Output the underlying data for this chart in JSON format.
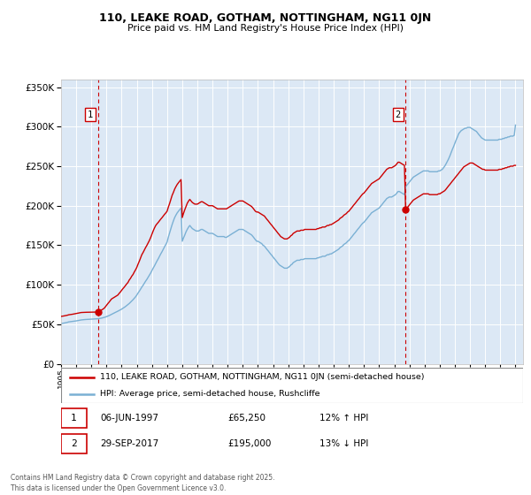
{
  "title1": "110, LEAKE ROAD, GOTHAM, NOTTINGHAM, NG11 0JN",
  "title2": "Price paid vs. HM Land Registry's House Price Index (HPI)",
  "legend1": "110, LEAKE ROAD, GOTHAM, NOTTINGHAM, NG11 0JN (semi-detached house)",
  "legend2": "HPI: Average price, semi-detached house, Rushcliffe",
  "annotation1_label": "1",
  "annotation1_date": "06-JUN-1997",
  "annotation1_price": "£65,250",
  "annotation1_hpi": "12% ↑ HPI",
  "annotation1_year": 1997.44,
  "annotation1_value": 65250,
  "annotation2_label": "2",
  "annotation2_date": "29-SEP-2017",
  "annotation2_price": "£195,000",
  "annotation2_hpi": "13% ↓ HPI",
  "annotation2_year": 2017.75,
  "annotation2_value": 195000,
  "red_color": "#cc0000",
  "blue_color": "#7ab0d4",
  "background_color": "#dce8f5",
  "grid_color": "#ffffff",
  "ylim": [
    0,
    360000
  ],
  "xlim_start": 1995.0,
  "xlim_end": 2025.5,
  "footer": "Contains HM Land Registry data © Crown copyright and database right 2025.\nThis data is licensed under the Open Government Licence v3.0.",
  "red_x": [
    1995.0,
    1995.08,
    1995.17,
    1995.25,
    1995.33,
    1995.42,
    1995.5,
    1995.58,
    1995.67,
    1995.75,
    1995.83,
    1995.92,
    1996.0,
    1996.08,
    1996.17,
    1996.25,
    1996.33,
    1996.42,
    1996.5,
    1996.58,
    1996.67,
    1996.75,
    1996.83,
    1996.92,
    1997.0,
    1997.08,
    1997.17,
    1997.25,
    1997.33,
    1997.42,
    1997.5,
    1997.58,
    1997.67,
    1997.75,
    1997.83,
    1997.92,
    1998.0,
    1998.08,
    1998.17,
    1998.25,
    1998.33,
    1998.42,
    1998.5,
    1998.58,
    1998.67,
    1998.75,
    1998.83,
    1998.92,
    1999.0,
    1999.08,
    1999.17,
    1999.25,
    1999.33,
    1999.42,
    1999.5,
    1999.58,
    1999.67,
    1999.75,
    1999.83,
    1999.92,
    2000.0,
    2000.08,
    2000.17,
    2000.25,
    2000.33,
    2000.42,
    2000.5,
    2000.58,
    2000.67,
    2000.75,
    2000.83,
    2000.92,
    2001.0,
    2001.08,
    2001.17,
    2001.25,
    2001.33,
    2001.42,
    2001.5,
    2001.58,
    2001.67,
    2001.75,
    2001.83,
    2001.92,
    2002.0,
    2002.08,
    2002.17,
    2002.25,
    2002.33,
    2002.42,
    2002.5,
    2002.58,
    2002.67,
    2002.75,
    2002.83,
    2002.92,
    2003.0,
    2003.08,
    2003.17,
    2003.25,
    2003.33,
    2003.42,
    2003.5,
    2003.58,
    2003.67,
    2003.75,
    2003.83,
    2003.92,
    2004.0,
    2004.08,
    2004.17,
    2004.25,
    2004.33,
    2004.42,
    2004.5,
    2004.58,
    2004.67,
    2004.75,
    2004.83,
    2004.92,
    2005.0,
    2005.08,
    2005.17,
    2005.25,
    2005.33,
    2005.42,
    2005.5,
    2005.58,
    2005.67,
    2005.75,
    2005.83,
    2005.92,
    2006.0,
    2006.08,
    2006.17,
    2006.25,
    2006.33,
    2006.42,
    2006.5,
    2006.58,
    2006.67,
    2006.75,
    2006.83,
    2006.92,
    2007.0,
    2007.08,
    2007.17,
    2007.25,
    2007.33,
    2007.42,
    2007.5,
    2007.58,
    2007.67,
    2007.75,
    2007.83,
    2007.92,
    2008.0,
    2008.08,
    2008.17,
    2008.25,
    2008.33,
    2008.42,
    2008.5,
    2008.58,
    2008.67,
    2008.75,
    2008.83,
    2008.92,
    2009.0,
    2009.08,
    2009.17,
    2009.25,
    2009.33,
    2009.42,
    2009.5,
    2009.58,
    2009.67,
    2009.75,
    2009.83,
    2009.92,
    2010.0,
    2010.08,
    2010.17,
    2010.25,
    2010.33,
    2010.42,
    2010.5,
    2010.58,
    2010.67,
    2010.75,
    2010.83,
    2010.92,
    2011.0,
    2011.08,
    2011.17,
    2011.25,
    2011.33,
    2011.42,
    2011.5,
    2011.58,
    2011.67,
    2011.75,
    2011.83,
    2011.92,
    2012.0,
    2012.08,
    2012.17,
    2012.25,
    2012.33,
    2012.42,
    2012.5,
    2012.58,
    2012.67,
    2012.75,
    2012.83,
    2012.92,
    2013.0,
    2013.08,
    2013.17,
    2013.25,
    2013.33,
    2013.42,
    2013.5,
    2013.58,
    2013.67,
    2013.75,
    2013.83,
    2013.92,
    2014.0,
    2014.08,
    2014.17,
    2014.25,
    2014.33,
    2014.42,
    2014.5,
    2014.58,
    2014.67,
    2014.75,
    2014.83,
    2014.92,
    2015.0,
    2015.08,
    2015.17,
    2015.25,
    2015.33,
    2015.42,
    2015.5,
    2015.58,
    2015.67,
    2015.75,
    2015.83,
    2015.92,
    2016.0,
    2016.08,
    2016.17,
    2016.25,
    2016.33,
    2016.42,
    2016.5,
    2016.58,
    2016.67,
    2016.75,
    2016.83,
    2016.92,
    2017.0,
    2017.08,
    2017.17,
    2017.25,
    2017.33,
    2017.42,
    2017.5,
    2017.58,
    2017.67,
    2017.75,
    2017.83,
    2017.92,
    2018.0,
    2018.08,
    2018.17,
    2018.25,
    2018.33,
    2018.42,
    2018.5,
    2018.58,
    2018.67,
    2018.75,
    2018.83,
    2018.92,
    2019.0,
    2019.08,
    2019.17,
    2019.25,
    2019.33,
    2019.42,
    2019.5,
    2019.58,
    2019.67,
    2019.75,
    2019.83,
    2019.92,
    2020.0,
    2020.08,
    2020.17,
    2020.25,
    2020.33,
    2020.42,
    2020.5,
    2020.58,
    2020.67,
    2020.75,
    2020.83,
    2020.92,
    2021.0,
    2021.08,
    2021.17,
    2021.25,
    2021.33,
    2021.42,
    2021.5,
    2021.58,
    2021.67,
    2021.75,
    2021.83,
    2021.92,
    2022.0,
    2022.08,
    2022.17,
    2022.25,
    2022.33,
    2022.42,
    2022.5,
    2022.58,
    2022.67,
    2022.75,
    2022.83,
    2022.92,
    2023.0,
    2023.08,
    2023.17,
    2023.25,
    2023.33,
    2023.42,
    2023.5,
    2023.58,
    2023.67,
    2023.75,
    2023.83,
    2023.92,
    2024.0,
    2024.08,
    2024.17,
    2024.25,
    2024.33,
    2024.42,
    2024.5,
    2024.58,
    2024.67,
    2024.75,
    2024.83,
    2024.92,
    2025.0
  ],
  "red_y": [
    60000,
    60200,
    60500,
    60800,
    61200,
    61500,
    62000,
    62200,
    62400,
    62700,
    63000,
    63300,
    63700,
    64000,
    64300,
    64600,
    64900,
    65000,
    65100,
    65150,
    65200,
    65220,
    65230,
    65240,
    65250,
    65260,
    65280,
    65300,
    65400,
    65500,
    66000,
    67000,
    68000,
    69000,
    70000,
    72000,
    74000,
    76000,
    78000,
    80000,
    82000,
    83000,
    84000,
    85000,
    86000,
    87000,
    89000,
    91000,
    93000,
    95000,
    97000,
    99000,
    101000,
    103000,
    106000,
    108000,
    111000,
    113000,
    116000,
    119000,
    122000,
    126000,
    130000,
    134000,
    138000,
    141000,
    144000,
    147000,
    150000,
    153000,
    156000,
    160000,
    164000,
    168000,
    172000,
    175000,
    177000,
    179000,
    181000,
    183000,
    185000,
    187000,
    189000,
    191000,
    193000,
    198000,
    203000,
    208000,
    213000,
    217000,
    221000,
    224000,
    227000,
    229000,
    231000,
    233000,
    185000,
    190000,
    195000,
    199000,
    203000,
    206000,
    208000,
    206000,
    204000,
    203000,
    202000,
    202000,
    202000,
    203000,
    204000,
    205000,
    205000,
    204000,
    203000,
    202000,
    201000,
    200000,
    200000,
    200000,
    200000,
    199000,
    198000,
    197000,
    196000,
    196000,
    196000,
    196000,
    196000,
    196000,
    196000,
    196000,
    197000,
    198000,
    199000,
    200000,
    201000,
    202000,
    203000,
    204000,
    205000,
    206000,
    206000,
    206000,
    206000,
    205000,
    204000,
    203000,
    202000,
    201000,
    200000,
    199000,
    197000,
    195000,
    193000,
    192000,
    192000,
    191000,
    190000,
    189000,
    188000,
    187000,
    185000,
    183000,
    181000,
    179000,
    177000,
    175000,
    173000,
    171000,
    169000,
    167000,
    165000,
    163000,
    161000,
    160000,
    159000,
    158000,
    158000,
    158000,
    159000,
    160000,
    162000,
    163000,
    165000,
    166000,
    167000,
    168000,
    168000,
    168000,
    169000,
    169000,
    169000,
    170000,
    170000,
    170000,
    170000,
    170000,
    170000,
    170000,
    170000,
    170000,
    170000,
    171000,
    171000,
    172000,
    172000,
    173000,
    173000,
    173000,
    174000,
    175000,
    175000,
    176000,
    176000,
    177000,
    178000,
    179000,
    180000,
    181000,
    182000,
    184000,
    185000,
    186000,
    188000,
    189000,
    190000,
    192000,
    193000,
    195000,
    197000,
    199000,
    201000,
    203000,
    205000,
    207000,
    209000,
    211000,
    213000,
    215000,
    216000,
    218000,
    220000,
    222000,
    224000,
    226000,
    228000,
    229000,
    230000,
    231000,
    232000,
    233000,
    234000,
    236000,
    238000,
    240000,
    242000,
    244000,
    246000,
    247000,
    248000,
    248000,
    248000,
    249000,
    250000,
    251000,
    253000,
    255000,
    255000,
    254000,
    253000,
    252000,
    251000,
    195000,
    197000,
    199000,
    201000,
    203000,
    205000,
    207000,
    208000,
    209000,
    210000,
    211000,
    212000,
    213000,
    214000,
    215000,
    215000,
    215000,
    215000,
    215000,
    214000,
    214000,
    214000,
    214000,
    214000,
    214000,
    214000,
    215000,
    215000,
    216000,
    217000,
    218000,
    219000,
    221000,
    223000,
    225000,
    227000,
    229000,
    231000,
    233000,
    235000,
    237000,
    239000,
    241000,
    243000,
    245000,
    247000,
    249000,
    250000,
    251000,
    252000,
    253000,
    254000,
    254000,
    254000,
    253000,
    252000,
    251000,
    250000,
    249000,
    248000,
    247000,
    246000,
    246000,
    245000,
    245000,
    245000,
    245000,
    245000,
    245000,
    245000,
    245000,
    245000,
    245000,
    245000,
    246000,
    246000,
    246000,
    247000,
    247000,
    248000,
    248000,
    249000,
    249000,
    250000,
    250000,
    250000,
    251000,
    251000
  ],
  "blue_x": [
    1995.0,
    1995.08,
    1995.17,
    1995.25,
    1995.33,
    1995.42,
    1995.5,
    1995.58,
    1995.67,
    1995.75,
    1995.83,
    1995.92,
    1996.0,
    1996.08,
    1996.17,
    1996.25,
    1996.33,
    1996.42,
    1996.5,
    1996.58,
    1996.67,
    1996.75,
    1996.83,
    1996.92,
    1997.0,
    1997.08,
    1997.17,
    1997.25,
    1997.33,
    1997.42,
    1997.5,
    1997.58,
    1997.67,
    1997.75,
    1997.83,
    1997.92,
    1998.0,
    1998.08,
    1998.17,
    1998.25,
    1998.33,
    1998.42,
    1998.5,
    1998.58,
    1998.67,
    1998.75,
    1998.83,
    1998.92,
    1999.0,
    1999.08,
    1999.17,
    1999.25,
    1999.33,
    1999.42,
    1999.5,
    1999.58,
    1999.67,
    1999.75,
    1999.83,
    1999.92,
    2000.0,
    2000.08,
    2000.17,
    2000.25,
    2000.33,
    2000.42,
    2000.5,
    2000.58,
    2000.67,
    2000.75,
    2000.83,
    2000.92,
    2001.0,
    2001.08,
    2001.17,
    2001.25,
    2001.33,
    2001.42,
    2001.5,
    2001.58,
    2001.67,
    2001.75,
    2001.83,
    2001.92,
    2002.0,
    2002.08,
    2002.17,
    2002.25,
    2002.33,
    2002.42,
    2002.5,
    2002.58,
    2002.67,
    2002.75,
    2002.83,
    2002.92,
    2003.0,
    2003.08,
    2003.17,
    2003.25,
    2003.33,
    2003.42,
    2003.5,
    2003.58,
    2003.67,
    2003.75,
    2003.83,
    2003.92,
    2004.0,
    2004.08,
    2004.17,
    2004.25,
    2004.33,
    2004.42,
    2004.5,
    2004.58,
    2004.67,
    2004.75,
    2004.83,
    2004.92,
    2005.0,
    2005.08,
    2005.17,
    2005.25,
    2005.33,
    2005.42,
    2005.5,
    2005.58,
    2005.67,
    2005.75,
    2005.83,
    2005.92,
    2006.0,
    2006.08,
    2006.17,
    2006.25,
    2006.33,
    2006.42,
    2006.5,
    2006.58,
    2006.67,
    2006.75,
    2006.83,
    2006.92,
    2007.0,
    2007.08,
    2007.17,
    2007.25,
    2007.33,
    2007.42,
    2007.5,
    2007.58,
    2007.67,
    2007.75,
    2007.83,
    2007.92,
    2008.0,
    2008.08,
    2008.17,
    2008.25,
    2008.33,
    2008.42,
    2008.5,
    2008.58,
    2008.67,
    2008.75,
    2008.83,
    2008.92,
    2009.0,
    2009.08,
    2009.17,
    2009.25,
    2009.33,
    2009.42,
    2009.5,
    2009.58,
    2009.67,
    2009.75,
    2009.83,
    2009.92,
    2010.0,
    2010.08,
    2010.17,
    2010.25,
    2010.33,
    2010.42,
    2010.5,
    2010.58,
    2010.67,
    2010.75,
    2010.83,
    2010.92,
    2011.0,
    2011.08,
    2011.17,
    2011.25,
    2011.33,
    2011.42,
    2011.5,
    2011.58,
    2011.67,
    2011.75,
    2011.83,
    2011.92,
    2012.0,
    2012.08,
    2012.17,
    2012.25,
    2012.33,
    2012.42,
    2012.5,
    2012.58,
    2012.67,
    2012.75,
    2012.83,
    2012.92,
    2013.0,
    2013.08,
    2013.17,
    2013.25,
    2013.33,
    2013.42,
    2013.5,
    2013.58,
    2013.67,
    2013.75,
    2013.83,
    2013.92,
    2014.0,
    2014.08,
    2014.17,
    2014.25,
    2014.33,
    2014.42,
    2014.5,
    2014.58,
    2014.67,
    2014.75,
    2014.83,
    2014.92,
    2015.0,
    2015.08,
    2015.17,
    2015.25,
    2015.33,
    2015.42,
    2015.5,
    2015.58,
    2015.67,
    2015.75,
    2015.83,
    2015.92,
    2016.0,
    2016.08,
    2016.17,
    2016.25,
    2016.33,
    2016.42,
    2016.5,
    2016.58,
    2016.67,
    2016.75,
    2016.83,
    2016.92,
    2017.0,
    2017.08,
    2017.17,
    2017.25,
    2017.33,
    2017.42,
    2017.5,
    2017.58,
    2017.67,
    2017.75,
    2017.83,
    2017.92,
    2018.0,
    2018.08,
    2018.17,
    2018.25,
    2018.33,
    2018.42,
    2018.5,
    2018.58,
    2018.67,
    2018.75,
    2018.83,
    2018.92,
    2019.0,
    2019.08,
    2019.17,
    2019.25,
    2019.33,
    2019.42,
    2019.5,
    2019.58,
    2019.67,
    2019.75,
    2019.83,
    2019.92,
    2020.0,
    2020.08,
    2020.17,
    2020.25,
    2020.33,
    2020.42,
    2020.5,
    2020.58,
    2020.67,
    2020.75,
    2020.83,
    2020.92,
    2021.0,
    2021.08,
    2021.17,
    2021.25,
    2021.33,
    2021.42,
    2021.5,
    2021.58,
    2021.67,
    2021.75,
    2021.83,
    2021.92,
    2022.0,
    2022.08,
    2022.17,
    2022.25,
    2022.33,
    2022.42,
    2022.5,
    2022.58,
    2022.67,
    2022.75,
    2022.83,
    2022.92,
    2023.0,
    2023.08,
    2023.17,
    2023.25,
    2023.33,
    2023.42,
    2023.5,
    2023.58,
    2023.67,
    2023.75,
    2023.83,
    2023.92,
    2024.0,
    2024.08,
    2024.17,
    2024.25,
    2024.33,
    2024.42,
    2024.5,
    2024.58,
    2024.67,
    2024.75,
    2024.83,
    2024.92,
    2025.0
  ],
  "blue_y": [
    51000,
    51200,
    51500,
    51800,
    52200,
    52500,
    53000,
    53200,
    53400,
    53600,
    53800,
    54000,
    54300,
    54600,
    54900,
    55200,
    55500,
    55700,
    55900,
    56000,
    56100,
    56200,
    56300,
    56400,
    56500,
    56600,
    56700,
    56800,
    56900,
    57000,
    57200,
    57500,
    57800,
    58200,
    58600,
    59100,
    59700,
    60300,
    61000,
    61800,
    62600,
    63400,
    64200,
    65000,
    65800,
    66600,
    67400,
    68300,
    69200,
    70200,
    71300,
    72400,
    73600,
    74900,
    76300,
    77800,
    79400,
    81100,
    82900,
    84800,
    87000,
    89500,
    92000,
    94500,
    97000,
    99500,
    102000,
    104500,
    107000,
    109500,
    112000,
    115000,
    118000,
    121000,
    124000,
    127000,
    130000,
    133000,
    136000,
    139000,
    142000,
    145000,
    148000,
    151000,
    154000,
    160000,
    166000,
    171000,
    176000,
    181000,
    185000,
    188000,
    191000,
    193000,
    195000,
    197000,
    155000,
    159000,
    163000,
    167000,
    170000,
    173000,
    175000,
    173000,
    171000,
    170000,
    169000,
    168000,
    168000,
    168000,
    169000,
    170000,
    170000,
    169000,
    168000,
    167000,
    166000,
    165000,
    165000,
    165000,
    165000,
    164000,
    163000,
    162000,
    161000,
    161000,
    161000,
    161000,
    161000,
    161000,
    160000,
    160000,
    161000,
    162000,
    163000,
    164000,
    165000,
    166000,
    167000,
    168000,
    169000,
    170000,
    170000,
    170000,
    170000,
    169000,
    168000,
    167000,
    166000,
    165000,
    164000,
    163000,
    161000,
    159000,
    157000,
    155000,
    155000,
    154000,
    153000,
    152000,
    150000,
    149000,
    147000,
    145000,
    143000,
    141000,
    139000,
    137000,
    135000,
    133000,
    131000,
    129000,
    127000,
    125000,
    124000,
    123000,
    122000,
    121000,
    121000,
    121000,
    122000,
    123000,
    125000,
    126000,
    128000,
    129000,
    130000,
    131000,
    131000,
    131000,
    132000,
    132000,
    132000,
    133000,
    133000,
    133000,
    133000,
    133000,
    133000,
    133000,
    133000,
    133000,
    133000,
    134000,
    134000,
    135000,
    135000,
    136000,
    136000,
    136000,
    137000,
    138000,
    138000,
    139000,
    139000,
    140000,
    141000,
    142000,
    143000,
    144000,
    145000,
    147000,
    148000,
    149000,
    151000,
    152000,
    153000,
    155000,
    156000,
    158000,
    160000,
    162000,
    164000,
    166000,
    168000,
    170000,
    172000,
    174000,
    176000,
    178000,
    179000,
    181000,
    183000,
    185000,
    187000,
    189000,
    191000,
    192000,
    193000,
    194000,
    195000,
    196000,
    197000,
    199000,
    201000,
    203000,
    205000,
    207000,
    209000,
    210000,
    211000,
    211000,
    211000,
    212000,
    213000,
    214000,
    216000,
    218000,
    218000,
    217000,
    216000,
    215000,
    214000,
    224000,
    226000,
    228000,
    230000,
    232000,
    234000,
    236000,
    237000,
    238000,
    239000,
    240000,
    241000,
    242000,
    243000,
    244000,
    244000,
    244000,
    244000,
    244000,
    243000,
    243000,
    243000,
    243000,
    243000,
    243000,
    243000,
    244000,
    244000,
    245000,
    246000,
    248000,
    250000,
    253000,
    256000,
    259000,
    263000,
    267000,
    271000,
    275000,
    279000,
    283000,
    287000,
    291000,
    293000,
    295000,
    296000,
    297000,
    298000,
    298000,
    299000,
    299000,
    299000,
    298000,
    297000,
    296000,
    295000,
    294000,
    292000,
    290000,
    288000,
    286000,
    285000,
    284000,
    283000,
    283000,
    283000,
    283000,
    283000,
    283000,
    283000,
    283000,
    283000,
    283000,
    283000,
    284000,
    284000,
    284000,
    285000,
    285000,
    286000,
    286000,
    287000,
    287000,
    288000,
    288000,
    288000,
    289000,
    302000
  ]
}
